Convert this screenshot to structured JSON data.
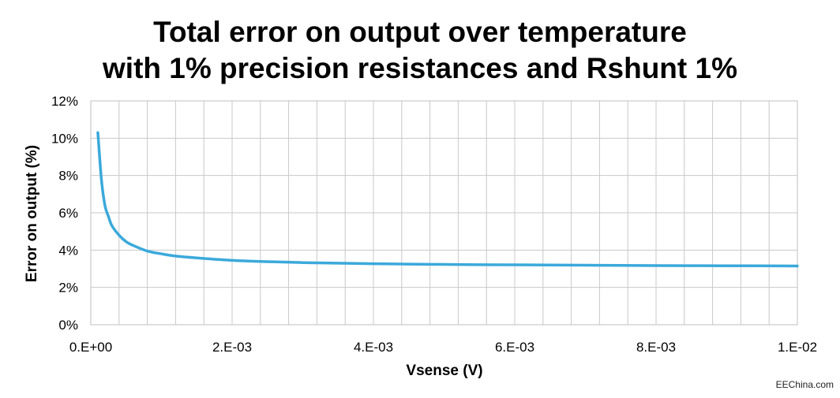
{
  "chart_data": {
    "type": "line",
    "title_lines": [
      "Total error on output over temperature",
      "with 1% precision resistances and Rshunt 1%"
    ],
    "xlabel": "Vsense (V)",
    "ylabel": "Error on output (%)",
    "xlim": [
      0,
      0.01
    ],
    "ylim": [
      0,
      12
    ],
    "x_ticks": [
      0,
      0.002,
      0.004,
      0.006,
      0.008,
      0.01
    ],
    "x_tick_labels": [
      "0.E+00",
      "2.E-03",
      "4.E-03",
      "6.E-03",
      "8.E-03",
      "1.E-02"
    ],
    "y_ticks": [
      0,
      2,
      4,
      6,
      8,
      10,
      12
    ],
    "y_tick_labels": [
      "0%",
      "2%",
      "4%",
      "6%",
      "8%",
      "10%",
      "12%"
    ],
    "grid": true,
    "x_minor_grid_step": 0.0004,
    "series": [
      {
        "color": "#3BA9DB",
        "x": [
          0.0001,
          0.00015,
          0.0002,
          0.00025,
          0.0003,
          0.0004,
          0.0005,
          0.0006,
          0.0008,
          0.001,
          0.0012,
          0.0015,
          0.002,
          0.0025,
          0.003,
          0.004,
          0.005,
          0.006,
          0.007,
          0.008,
          0.009,
          0.01
        ],
        "y": [
          10.3,
          7.8,
          6.4,
          5.8,
          5.3,
          4.8,
          4.45,
          4.25,
          3.95,
          3.8,
          3.68,
          3.58,
          3.45,
          3.38,
          3.33,
          3.27,
          3.23,
          3.21,
          3.19,
          3.17,
          3.16,
          3.15
        ]
      }
    ]
  },
  "watermark": "EEChina.com"
}
